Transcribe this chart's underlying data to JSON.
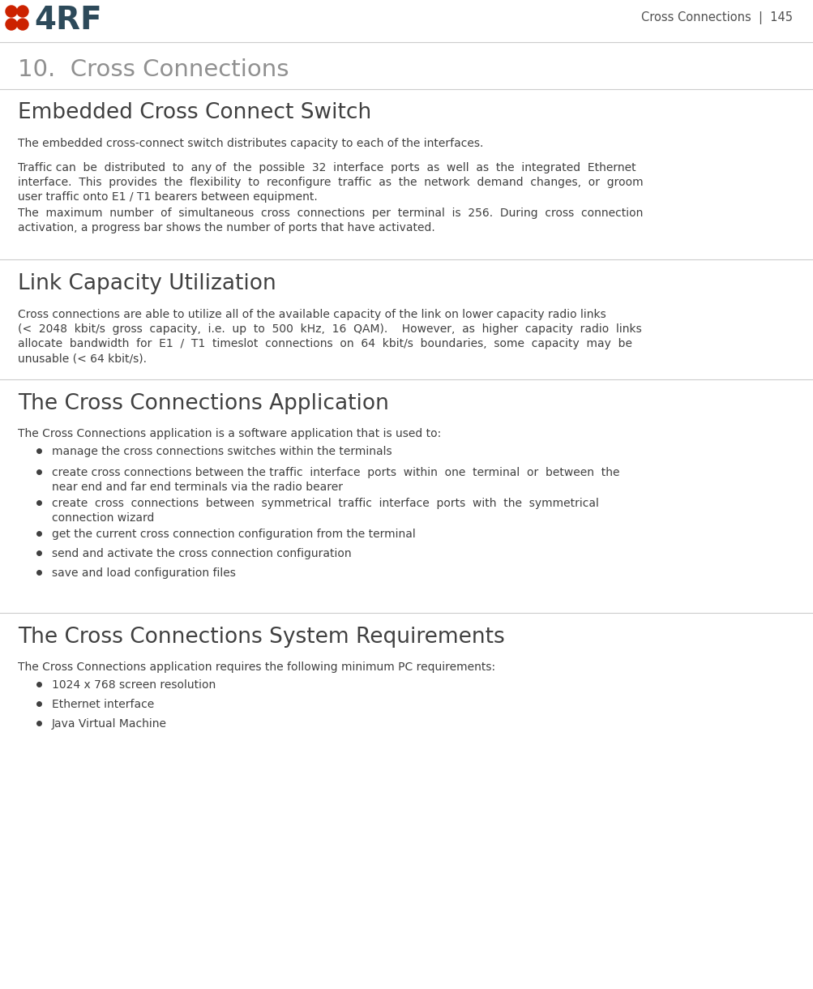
{
  "bg_color": "#ffffff",
  "header_text": "Cross Connections  |  145",
  "header_color": "#505050",
  "header_fontsize": 10.5,
  "chapter_title": "10.  Cross Connections",
  "chapter_title_color": "#909090",
  "chapter_title_fontsize": 21,
  "section1_title": "Embedded Cross Connect Switch",
  "section1_title_color": "#404040",
  "section1_title_fontsize": 19,
  "section2_title": "Link Capacity Utilization",
  "section2_title_color": "#404040",
  "section2_title_fontsize": 19,
  "section3_title": "The Cross Connections Application",
  "section3_title_color": "#404040",
  "section3_title_fontsize": 19,
  "section4_title": "The Cross Connections System Requirements",
  "section4_title_color": "#404040",
  "section4_title_fontsize": 19,
  "body_color": "#404040",
  "body_fontsize": 10,
  "logo_color": "#cc2200",
  "logo_text_color": "#2d4a5a",
  "line_color": "#cccccc",
  "paragraph1": "The embedded cross-connect switch distributes capacity to each of the interfaces.",
  "paragraph2_line1": "Traffic can  be  distributed  to  any of  the  possible  32  interface  ports  as  well  as  the  integrated  Ethernet",
  "paragraph2_line2": "interface.  This  provides  the  flexibility  to  reconfigure  traffic  as  the  network  demand  changes,  or  groom",
  "paragraph2_line3": "user traffic onto E1 / T1 bearers between equipment.",
  "paragraph3_line1": "The  maximum  number  of  simultaneous  cross  connections  per  terminal  is  256.  During  cross  connection",
  "paragraph3_line2": "activation, a progress bar shows the number of ports that have activated.",
  "paragraph4_line1": "Cross connections are able to utilize all of the available capacity of the link on lower capacity radio links",
  "paragraph4_line2": "(<  2048  kbit/s  gross  capacity,  i.e.  up  to  500  kHz,  16  QAM).    However,  as  higher  capacity  radio  links",
  "paragraph4_line3": "allocate  bandwidth  for  E1  /  T1  timeslot  connections  on  64  kbit/s  boundaries,  some  capacity  may  be",
  "paragraph4_line4": "unusable (< 64 kbit/s).",
  "paragraph5": "The Cross Connections application is a software application that is used to:",
  "bullet_items_app": [
    "manage the cross connections switches within the terminals",
    "create cross connections between the traffic  interface  ports  within  one  terminal  or  between  the\nnear end and far end terminals via the radio bearer",
    "create  cross  connections  between  symmetrical  traffic  interface  ports  with  the  symmetrical\nconnection wizard",
    "get the current cross connection configuration from the terminal",
    "send and activate the cross connection configuration",
    "save and load configuration files"
  ],
  "paragraph6": "The Cross Connections application requires the following minimum PC requirements:",
  "bullet_items_req": [
    "1024 x 768 screen resolution",
    "Ethernet interface",
    "Java Virtual Machine"
  ]
}
